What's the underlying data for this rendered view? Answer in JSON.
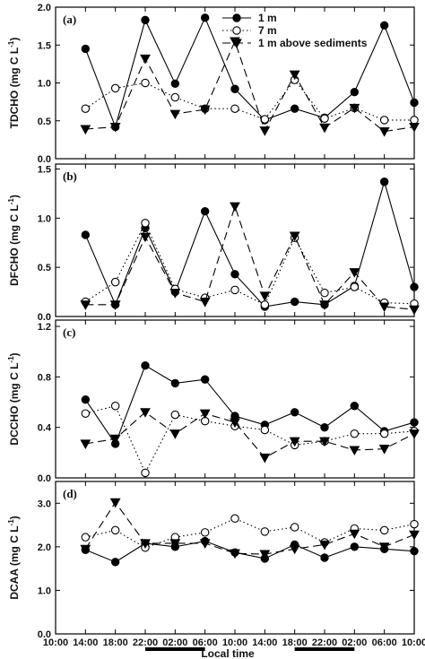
{
  "chart_data": {
    "type": "line",
    "x_axis": {
      "label": "Local time",
      "tick_labels": [
        "10:00",
        "14:00",
        "18:00",
        "22:00",
        "02:00",
        "06:00",
        "10:00",
        "14:00",
        "18:00",
        "22:00",
        "02:00",
        "06:00",
        "10:00"
      ],
      "night_bars": [
        [
          3,
          5
        ],
        [
          8,
          10
        ]
      ]
    },
    "legend": {
      "placement": "top-right",
      "entries": [
        "1 m",
        "7 m",
        "1 m above sediments"
      ]
    },
    "panels": [
      {
        "letter": "(a)",
        "ylabel": "TDCHO (mg C L",
        "ylabel_sup": "-1",
        "ylabel_end": ")",
        "ylim": [
          0,
          2.0
        ],
        "yticks": [
          0,
          0.5,
          1.0,
          1.5,
          2.0
        ],
        "ytick_labels": [
          "0.0",
          "0.5",
          "1.0",
          "1.5",
          "2.0"
        ],
        "series": [
          {
            "name": "1 m",
            "x": [
              1,
              2,
              3,
              4,
              5,
              6,
              7,
              8,
              9,
              10,
              11,
              12
            ],
            "values": [
              1.45,
              0.42,
              1.83,
              0.99,
              1.86,
              0.92,
              0.51,
              0.66,
              0.54,
              0.88,
              1.76,
              0.74
            ]
          },
          {
            "name": "7 m",
            "x": [
              1,
              2,
              3,
              4,
              5,
              6,
              7,
              8,
              9,
              10,
              11,
              12
            ],
            "values": [
              0.66,
              0.93,
              1.0,
              0.81,
              0.66,
              0.66,
              0.52,
              1.04,
              0.53,
              0.67,
              0.51,
              0.51
            ]
          },
          {
            "name": "1 m above sediments",
            "x": [
              1,
              2,
              3,
              4,
              5,
              6,
              7,
              8,
              9,
              10,
              11,
              12
            ],
            "values": [
              0.39,
              0.42,
              1.32,
              0.59,
              0.65,
              1.55,
              0.37,
              1.11,
              0.41,
              0.67,
              0.36,
              0.42
            ]
          }
        ]
      },
      {
        "letter": "(b)",
        "ylabel": "DFCHO (mg C L",
        "ylabel_sup": "-1",
        "ylabel_end": ")",
        "ylim": [
          0,
          1.55
        ],
        "yticks": [
          0,
          0.5,
          1.0,
          1.5
        ],
        "ytick_labels": [
          "0.0",
          "0.5",
          "1.0",
          "1.5"
        ],
        "series": [
          {
            "name": "1 m",
            "x": [
              1,
              2,
              3,
              4,
              5,
              6,
              7,
              8,
              9,
              10,
              11,
              12
            ],
            "values": [
              0.83,
              0.12,
              0.9,
              0.25,
              1.07,
              0.43,
              0.1,
              0.15,
              0.12,
              0.31,
              1.37,
              0.3
            ]
          },
          {
            "name": "7 m",
            "x": [
              1,
              2,
              3,
              4,
              5,
              6,
              7,
              8,
              9,
              10,
              11,
              12
            ],
            "values": [
              0.15,
              0.35,
              0.95,
              0.28,
              0.19,
              0.27,
              0.12,
              0.8,
              0.24,
              0.3,
              0.14,
              0.13
            ]
          },
          {
            "name": "1 m above sediments",
            "x": [
              1,
              2,
              3,
              4,
              5,
              6,
              7,
              8,
              9,
              10,
              11,
              12
            ],
            "values": [
              0.12,
              0.12,
              0.81,
              0.24,
              0.15,
              1.12,
              0.21,
              0.82,
              0.12,
              0.45,
              0.1,
              0.07
            ]
          }
        ]
      },
      {
        "letter": "(c)",
        "ylabel": "DCCHO (mg C L",
        "ylabel_sup": "-1",
        "ylabel_end": ")",
        "ylim": [
          0,
          1.25
        ],
        "yticks": [
          0,
          0.4,
          0.8,
          1.2
        ],
        "ytick_labels": [
          "0.0",
          "0.4",
          "0.8",
          "1.2"
        ],
        "series": [
          {
            "name": "1 m",
            "x": [
              1,
              2,
              3,
              4,
              5,
              6,
              7,
              8,
              9,
              10,
              11,
              12
            ],
            "values": [
              0.62,
              0.27,
              0.89,
              0.75,
              0.78,
              0.49,
              0.42,
              0.52,
              0.4,
              0.57,
              0.37,
              0.44
            ]
          },
          {
            "name": "7 m",
            "x": [
              1,
              2,
              3,
              4,
              5,
              6,
              7,
              8,
              9,
              10,
              11,
              12
            ],
            "values": [
              0.51,
              0.57,
              0.04,
              0.5,
              0.45,
              0.41,
              0.38,
              0.26,
              0.29,
              0.35,
              0.35,
              0.37
            ]
          },
          {
            "name": "1 m above sediments",
            "x": [
              1,
              2,
              3,
              4,
              5,
              6,
              7,
              8,
              9,
              10,
              11,
              12
            ],
            "values": [
              0.27,
              0.31,
              0.52,
              0.35,
              0.51,
              0.44,
              0.16,
              0.29,
              0.29,
              0.22,
              0.23,
              0.35
            ]
          }
        ]
      },
      {
        "letter": "(d)",
        "ylabel": "DCAA (mg C L",
        "ylabel_sup": "-1",
        "ylabel_end": ")",
        "ylim": [
          0,
          3.5
        ],
        "yticks": [
          0,
          1.0,
          2.0,
          3.0
        ],
        "ytick_labels": [
          "0.0",
          "1.0",
          "2.0",
          "3.0"
        ],
        "series": [
          {
            "name": "1 m",
            "x": [
              1,
              2,
              3,
              4,
              5,
              6,
              7,
              8,
              9,
              10,
              11,
              12
            ],
            "values": [
              1.93,
              1.65,
              2.08,
              2.0,
              2.13,
              1.87,
              1.73,
              2.05,
              1.75,
              2.0,
              1.95,
              1.9
            ]
          },
          {
            "name": "7 m",
            "x": [
              1,
              2,
              3,
              4,
              5,
              6,
              7,
              8,
              9,
              10,
              11,
              12
            ],
            "values": [
              2.22,
              2.38,
              1.98,
              2.22,
              2.33,
              2.65,
              2.35,
              2.45,
              2.1,
              2.42,
              2.38,
              2.52
            ]
          },
          {
            "name": "1 m above sediments",
            "x": [
              1,
              2,
              3,
              4,
              5,
              6,
              7,
              8,
              9,
              10,
              11,
              12
            ],
            "values": [
              1.95,
              3.02,
              2.08,
              2.08,
              2.08,
              1.85,
              1.83,
              1.95,
              2.05,
              2.3,
              2.0,
              2.28
            ]
          }
        ]
      }
    ]
  }
}
